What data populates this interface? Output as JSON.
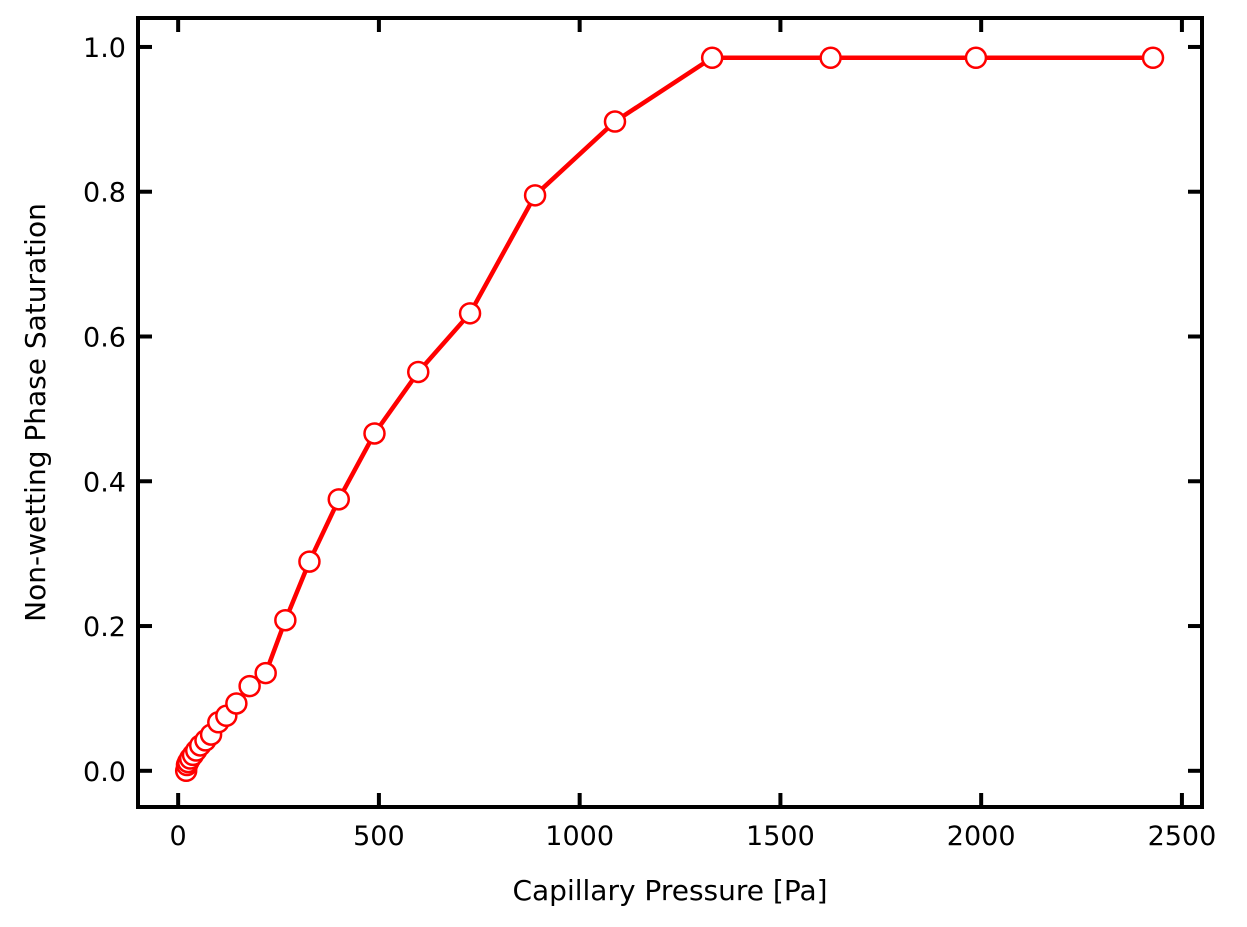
{
  "chart_data": {
    "type": "line",
    "title": "",
    "xlabel": "Capillary Pressure [Pa]",
    "ylabel": "Non-wetting Phase Saturation",
    "xlim": [
      -100,
      2550
    ],
    "ylim": [
      -0.05,
      1.04
    ],
    "xticks": [
      0,
      500,
      1000,
      1500,
      2000,
      2500
    ],
    "xtick_labels": [
      "0",
      "500",
      "1000",
      "1500",
      "2000",
      "2500"
    ],
    "yticks": [
      0.0,
      0.2,
      0.4,
      0.6,
      0.8,
      1.0
    ],
    "ytick_labels": [
      "0.0",
      "0.2",
      "0.4",
      "0.6",
      "0.8",
      "1.0"
    ],
    "grid": false,
    "series": [
      {
        "color": "#ff0000",
        "marker": "circle-open",
        "x": [
          20,
          22,
          25,
          30,
          37,
          45,
          55,
          68,
          82,
          100,
          120,
          145,
          178,
          218,
          267,
          327,
          400,
          489,
          598,
          727,
          889,
          1088,
          1330,
          1625,
          1987,
          2428
        ],
        "y": [
          0.0,
          0.008,
          0.012,
          0.017,
          0.022,
          0.028,
          0.035,
          0.042,
          0.05,
          0.067,
          0.076,
          0.093,
          0.117,
          0.135,
          0.208,
          0.289,
          0.375,
          0.466,
          0.551,
          0.632,
          0.795,
          0.897,
          0.985,
          0.985,
          0.985,
          0.985
        ]
      }
    ]
  }
}
